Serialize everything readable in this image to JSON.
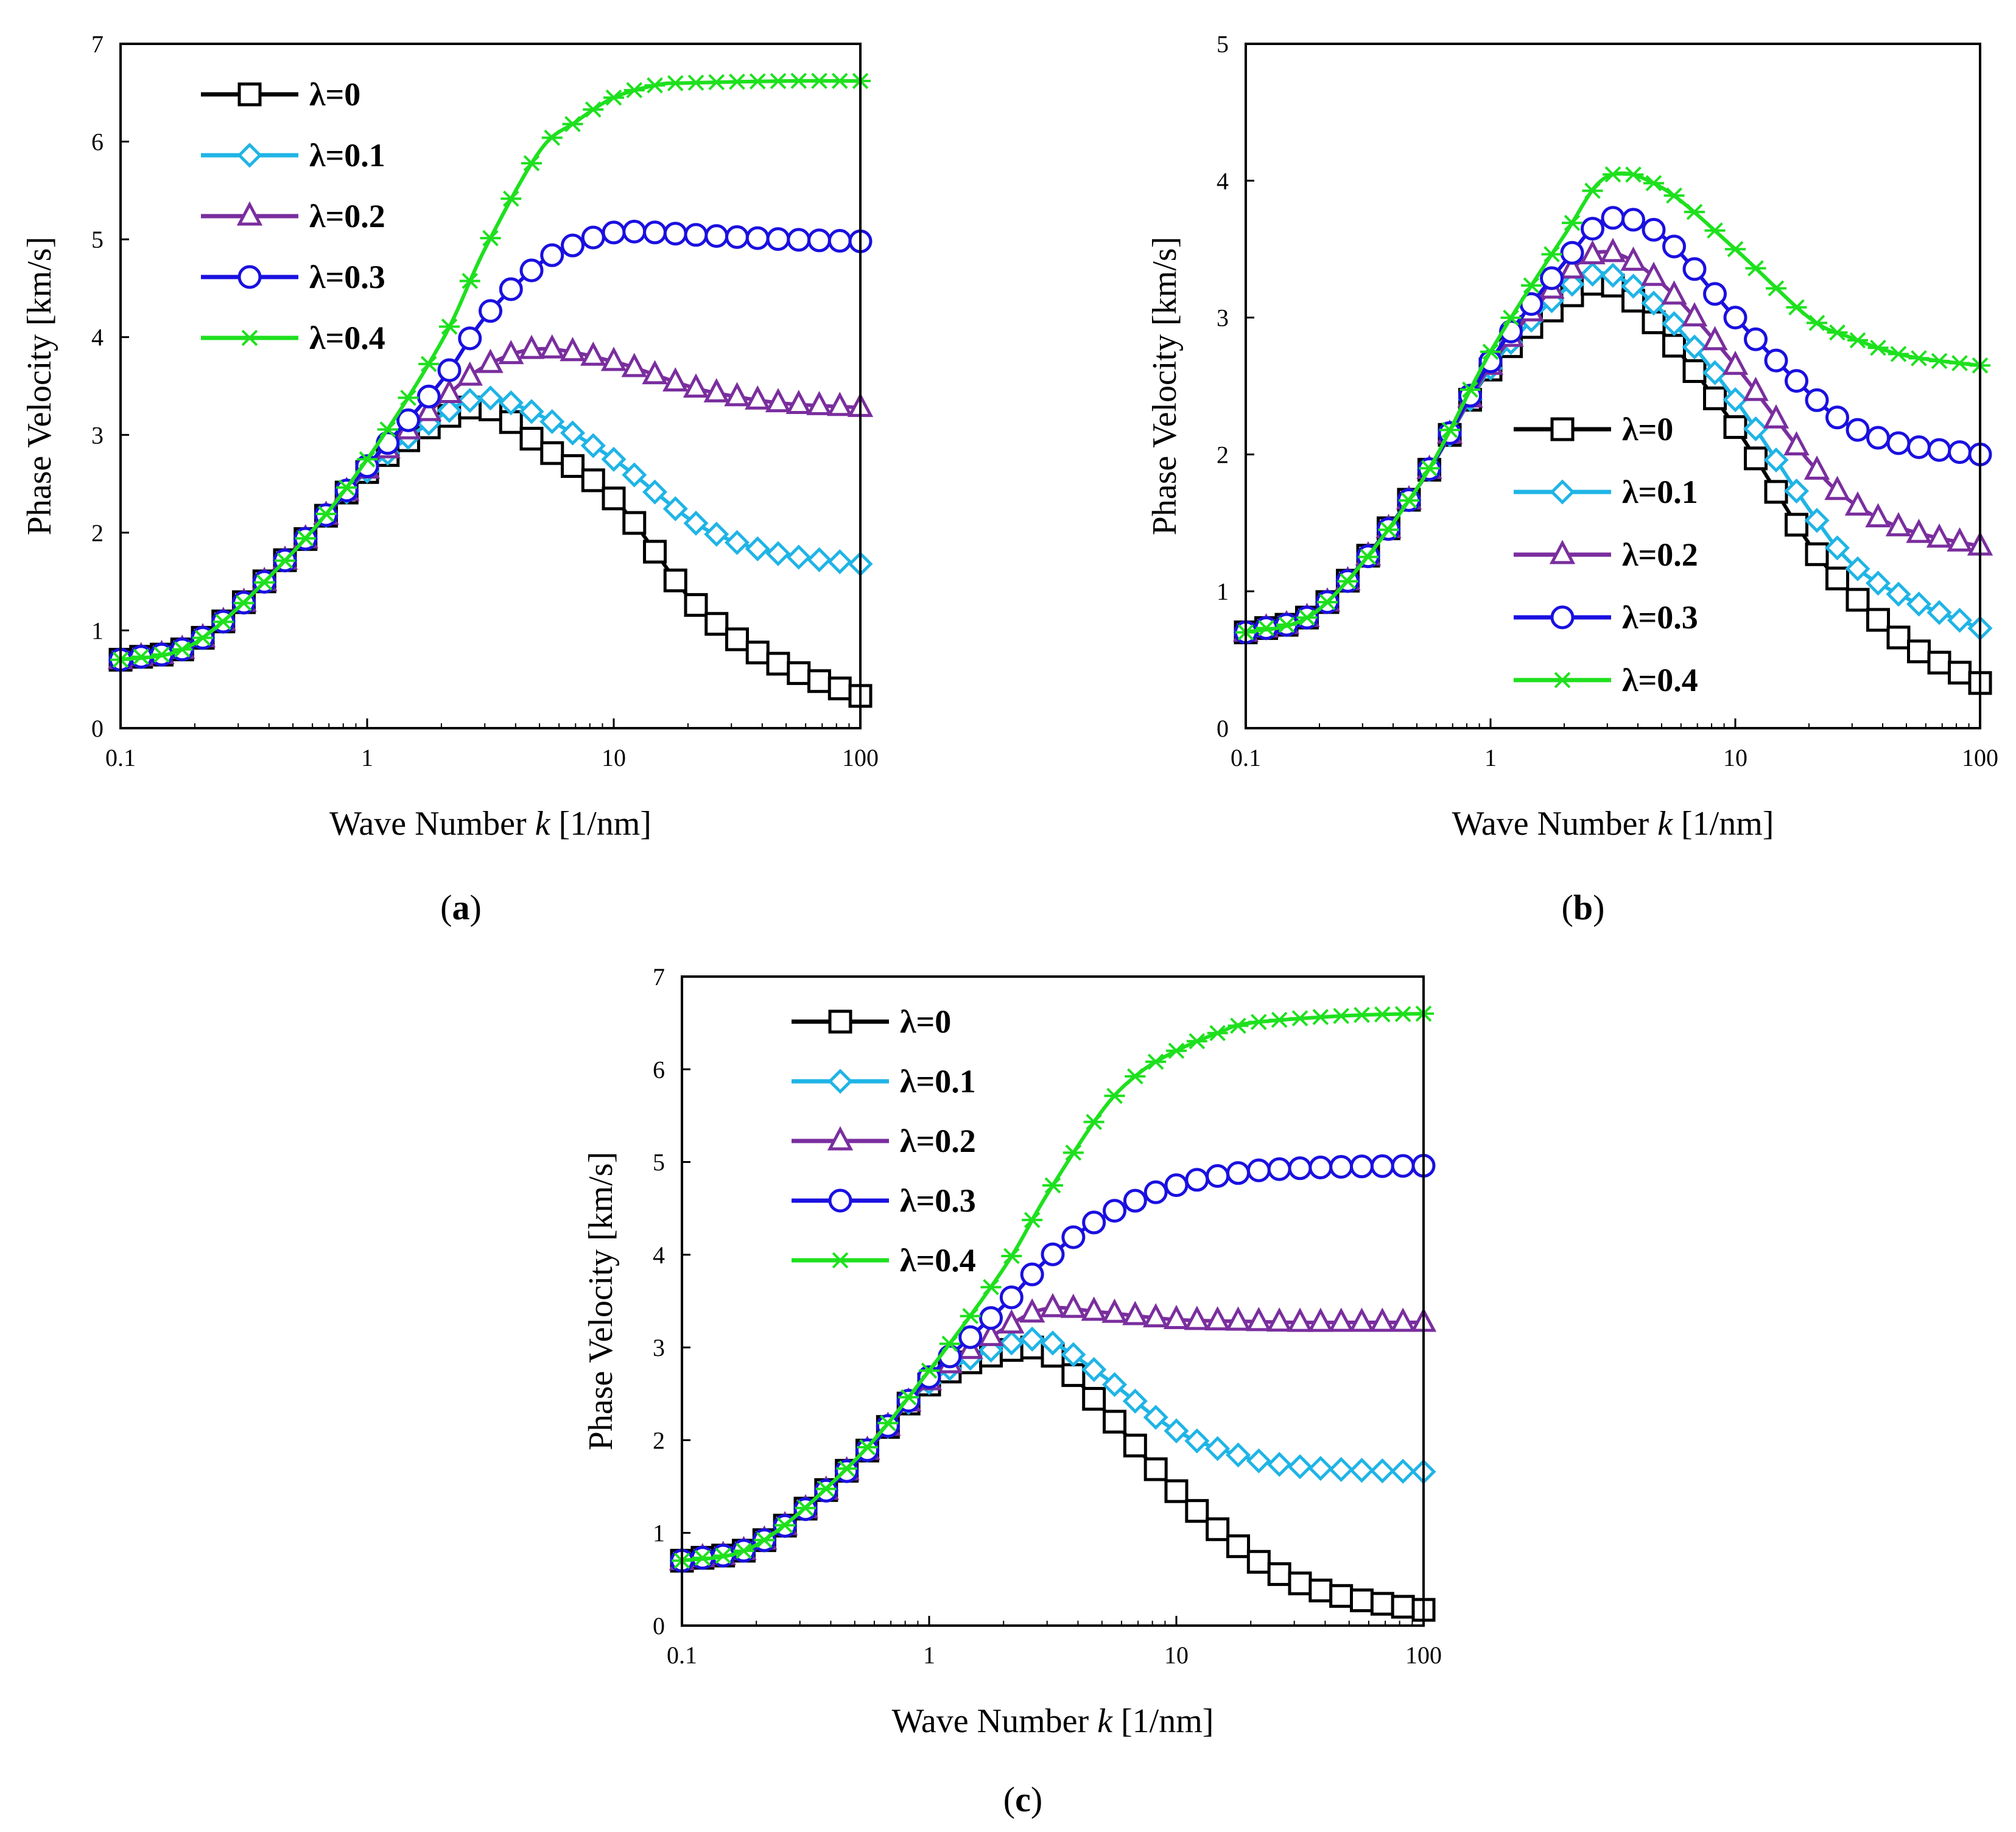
{
  "figure": {
    "panels": [
      {
        "id": "a",
        "label": "(a)",
        "label_bold": "a"
      },
      {
        "id": "b",
        "label": "(b)",
        "label_bold": "b"
      },
      {
        "id": "c",
        "label": "(c)",
        "label_bold": "c"
      }
    ]
  },
  "colors": {
    "lambda_0": "#000000",
    "lambda_0_1": "#1fb4e6",
    "lambda_0_2": "#7a2e9e",
    "lambda_0_3": "#1a10e0",
    "lambda_0_4": "#1ee01e"
  },
  "chart_data": [
    {
      "panel": "a",
      "type": "line",
      "xscale": "log",
      "xlabel": "Wave Number k [1/nm]",
      "ylabel": "Phase Velocity [km/s]",
      "xlim": [
        0.1,
        100
      ],
      "ylim": [
        0,
        7
      ],
      "xticks": [
        "0.1",
        "1",
        "10",
        "100"
      ],
      "yticks": [
        "0",
        "1",
        "2",
        "3",
        "4",
        "5",
        "6",
        "7"
      ],
      "legend_position": "top-left",
      "series": [
        {
          "name": "λ=0",
          "marker": "square",
          "color": "#000000",
          "x": [
            0.1,
            0.2,
            0.5,
            1,
            2,
            3,
            5,
            10,
            20,
            30,
            50,
            100
          ],
          "y": [
            0.7,
            0.87,
            1.8,
            2.62,
            3.15,
            3.28,
            2.9,
            2.35,
            1.35,
            0.95,
            0.62,
            0.33
          ]
        },
        {
          "name": "λ=0.1",
          "marker": "diamond",
          "color": "#1fb4e6",
          "x": [
            0.1,
            0.2,
            0.5,
            1,
            2,
            3,
            5,
            10,
            20,
            30,
            50,
            100
          ],
          "y": [
            0.7,
            0.87,
            1.8,
            2.63,
            3.2,
            3.38,
            3.2,
            2.75,
            2.15,
            1.92,
            1.77,
            1.68
          ]
        },
        {
          "name": "λ=0.2",
          "marker": "triangle",
          "color": "#7a2e9e",
          "x": [
            0.1,
            0.2,
            0.5,
            1,
            2,
            3,
            5,
            10,
            20,
            30,
            50,
            100
          ],
          "y": [
            0.7,
            0.87,
            1.8,
            2.65,
            3.35,
            3.7,
            3.88,
            3.75,
            3.5,
            3.4,
            3.32,
            3.28
          ]
        },
        {
          "name": "λ=0.3",
          "marker": "circle",
          "color": "#1a10e0",
          "x": [
            0.1,
            0.2,
            0.5,
            1,
            2,
            3,
            5,
            7,
            10,
            15,
            20,
            50,
            100
          ],
          "y": [
            0.7,
            0.87,
            1.8,
            2.68,
            3.55,
            4.2,
            4.75,
            4.95,
            5.07,
            5.07,
            5.05,
            5.0,
            4.98
          ]
        },
        {
          "name": "λ=0.4",
          "marker": "star",
          "color": "#1ee01e",
          "x": [
            0.1,
            0.2,
            0.5,
            1,
            2,
            3,
            5,
            7,
            10,
            15,
            20,
            50,
            100
          ],
          "y": [
            0.7,
            0.87,
            1.8,
            2.75,
            3.95,
            4.9,
            5.9,
            6.2,
            6.45,
            6.58,
            6.6,
            6.62,
            6.62
          ]
        }
      ]
    },
    {
      "panel": "b",
      "type": "line",
      "xscale": "log",
      "xlabel": "Wave Number k [1/nm]",
      "ylabel": "Phase Velocity [km/s]",
      "xlim": [
        0.1,
        100
      ],
      "ylim": [
        0,
        5
      ],
      "xticks": [
        "0.1",
        "1",
        "10",
        "100"
      ],
      "yticks": [
        "0",
        "1",
        "2",
        "3",
        "4",
        "5"
      ],
      "legend_position": "bottom-center",
      "series": [
        {
          "name": "λ=0",
          "marker": "square",
          "color": "#000000",
          "x": [
            0.1,
            0.2,
            0.5,
            1,
            2,
            3,
            5,
            10,
            20,
            30,
            50,
            100
          ],
          "y": [
            0.7,
            0.87,
            1.75,
            2.62,
            3.12,
            3.25,
            2.9,
            2.2,
            1.35,
            0.98,
            0.62,
            0.33
          ]
        },
        {
          "name": "λ=0.1",
          "marker": "diamond",
          "color": "#1fb4e6",
          "x": [
            0.1,
            0.2,
            0.5,
            1,
            2,
            3,
            5,
            10,
            20,
            30,
            50,
            100
          ],
          "y": [
            0.7,
            0.87,
            1.75,
            2.63,
            3.2,
            3.32,
            3.05,
            2.4,
            1.6,
            1.2,
            0.95,
            0.73
          ]
        },
        {
          "name": "λ=0.2",
          "marker": "triangle",
          "color": "#7a2e9e",
          "x": [
            0.1,
            0.2,
            0.5,
            1,
            2,
            3,
            5,
            10,
            20,
            30,
            50,
            100
          ],
          "y": [
            0.7,
            0.87,
            1.75,
            2.65,
            3.3,
            3.48,
            3.25,
            2.65,
            1.95,
            1.65,
            1.45,
            1.33
          ]
        },
        {
          "name": "λ=0.3",
          "marker": "circle",
          "color": "#1a10e0",
          "x": [
            0.1,
            0.2,
            0.5,
            1,
            2,
            3,
            5,
            10,
            20,
            30,
            50,
            100
          ],
          "y": [
            0.7,
            0.87,
            1.75,
            2.68,
            3.4,
            3.72,
            3.6,
            3.0,
            2.45,
            2.2,
            2.07,
            2.0
          ]
        },
        {
          "name": "λ=0.4",
          "marker": "star",
          "color": "#1ee01e",
          "x": [
            0.1,
            0.2,
            0.5,
            1,
            2,
            3,
            5,
            10,
            20,
            30,
            50,
            100
          ],
          "y": [
            0.7,
            0.87,
            1.75,
            2.75,
            3.6,
            4.03,
            3.95,
            3.5,
            3.0,
            2.85,
            2.72,
            2.65
          ]
        }
      ]
    },
    {
      "panel": "c",
      "type": "line",
      "xscale": "log",
      "xlabel": "Wave Number k [1/nm]",
      "ylabel": "Phase Velocity [km/s]",
      "xlim": [
        0.1,
        100
      ],
      "ylim": [
        0,
        7
      ],
      "xticks": [
        "0.1",
        "1",
        "10",
        "100"
      ],
      "yticks": [
        "0",
        "1",
        "2",
        "3",
        "4",
        "5",
        "6",
        "7"
      ],
      "legend_position": "top-left",
      "series": [
        {
          "name": "λ=0",
          "marker": "square",
          "color": "#000000",
          "x": [
            0.1,
            0.2,
            0.5,
            1,
            2,
            3,
            5,
            10,
            20,
            30,
            50,
            100
          ],
          "y": [
            0.7,
            0.87,
            1.75,
            2.6,
            2.95,
            2.95,
            2.35,
            1.45,
            0.75,
            0.48,
            0.3,
            0.17
          ]
        },
        {
          "name": "λ=0.1",
          "marker": "diamond",
          "color": "#1fb4e6",
          "x": [
            0.1,
            0.2,
            0.5,
            1,
            2,
            3,
            5,
            10,
            20,
            30,
            50,
            100
          ],
          "y": [
            0.7,
            0.87,
            1.75,
            2.62,
            3.02,
            3.07,
            2.7,
            2.1,
            1.8,
            1.72,
            1.68,
            1.66
          ]
        },
        {
          "name": "λ=0.2",
          "marker": "triangle",
          "color": "#7a2e9e",
          "x": [
            0.1,
            0.2,
            0.5,
            1,
            2,
            3,
            5,
            10,
            20,
            30,
            50,
            100
          ],
          "y": [
            0.7,
            0.87,
            1.75,
            2.64,
            3.2,
            3.42,
            3.38,
            3.3,
            3.28,
            3.27,
            3.27,
            3.27
          ]
        },
        {
          "name": "λ=0.3",
          "marker": "circle",
          "color": "#1a10e0",
          "x": [
            0.1,
            0.2,
            0.5,
            1,
            2,
            3,
            5,
            10,
            20,
            30,
            50,
            100
          ],
          "y": [
            0.7,
            0.87,
            1.75,
            2.68,
            3.45,
            3.95,
            4.4,
            4.75,
            4.9,
            4.93,
            4.95,
            4.96
          ]
        },
        {
          "name": "λ=0.4",
          "marker": "star",
          "color": "#1ee01e",
          "x": [
            0.1,
            0.2,
            0.5,
            1,
            2,
            3,
            5,
            7,
            10,
            15,
            20,
            50,
            100
          ],
          "y": [
            0.7,
            0.87,
            1.78,
            2.75,
            3.85,
            4.65,
            5.55,
            5.95,
            6.2,
            6.4,
            6.5,
            6.58,
            6.6
          ]
        }
      ]
    }
  ]
}
